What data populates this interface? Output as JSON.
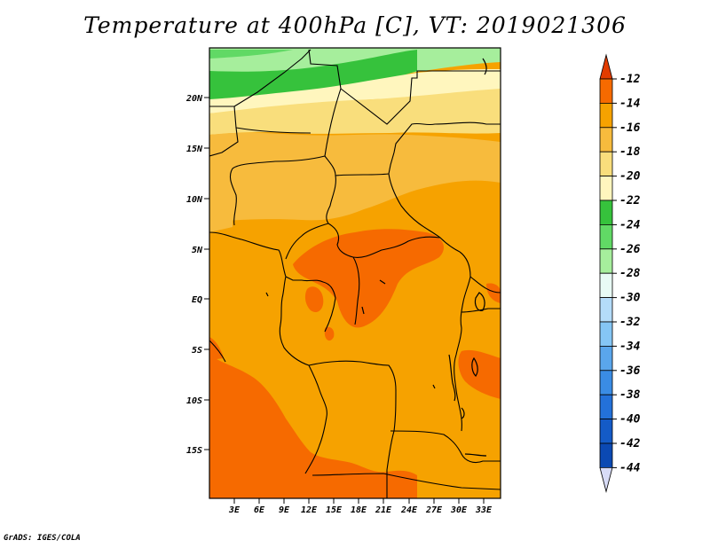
{
  "title": "Temperature at 400hPa [C], VT: 2019021306",
  "credit": "GrADS: IGES/COLA",
  "map": {
    "lat_labels": [
      "20N",
      "15N",
      "10N",
      "5N",
      "EQ",
      "5S",
      "10S",
      "15S"
    ],
    "lon_labels": [
      "3E",
      "6E",
      "9E",
      "12E",
      "15E",
      "18E",
      "21E",
      "24E",
      "27E",
      "30E",
      "33E"
    ]
  },
  "colorbar": {
    "labels": [
      "-12",
      "-14",
      "-16",
      "-18",
      "-20",
      "-22",
      "-24",
      "-26",
      "-28",
      "-30",
      "-32",
      "-34",
      "-36",
      "-38",
      "-40",
      "-42",
      "-44"
    ],
    "colors": [
      "#e23c00",
      "#f66a00",
      "#f6a200",
      "#f7bb3d",
      "#f9de7c",
      "#fff6be",
      "#36c23c",
      "#61d965",
      "#a6ee9c",
      "#e8fbf5",
      "#b4dcf9",
      "#85c6f5",
      "#5aa6ec",
      "#3a8ce4",
      "#2371d9",
      "#145bc7",
      "#0b49b3",
      "#0e1273",
      "#d8dcf7"
    ]
  },
  "colors": {
    "ocean_south": "#f66a00",
    "land_main": "#f6a200",
    "sahara_light": "#f9de7c",
    "north_green": "#36c23c",
    "north_pale_green": "#a6ee9c"
  }
}
